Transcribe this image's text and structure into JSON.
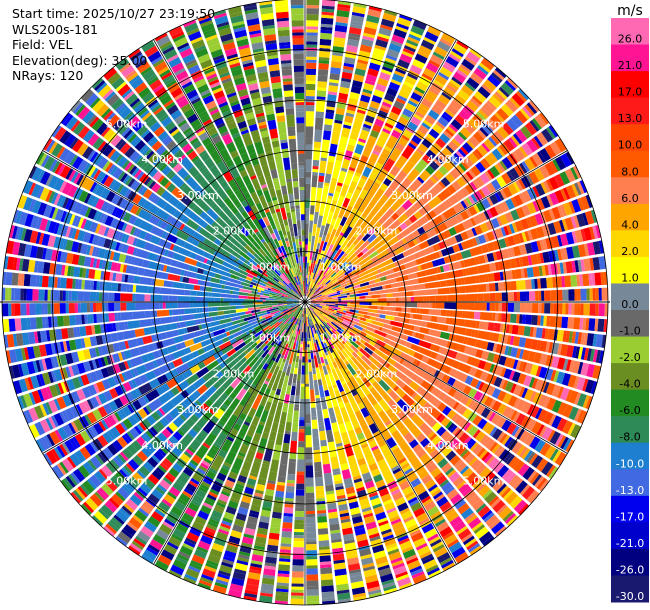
{
  "header": {
    "start_time": "Start time: 2025/10/27 23:19:50",
    "instrument": "WLS200s-181",
    "field": "Field: VEL",
    "elevation": "Elevation(deg): 35.00",
    "nrays": "NRays: 120"
  },
  "chart_data": {
    "type": "heatmap",
    "projection": "polar-ppi",
    "field": "VEL",
    "units": "m/s",
    "n_rays": 120,
    "elevation_deg": 35.0,
    "max_range_km": 6.0,
    "range_rings_km": [
      1.0,
      2.0,
      3.0,
      4.0,
      5.0
    ],
    "range_ring_labels": [
      "1.00km",
      "2.00km",
      "3.00km",
      "4.00km",
      "5.00km"
    ],
    "colorbar": {
      "label": "m/s",
      "tick_labels": [
        "26.0",
        "21.0",
        "17.0",
        "13.0",
        "10.0",
        "8.0",
        "6.0",
        "4.0",
        "2.0",
        "1.0",
        "0.0",
        "-1.0",
        "-2.0",
        "-4.0",
        "-6.0",
        "-8.0",
        "-10.0",
        "-13.0",
        "-17.0",
        "-21.0",
        "-26.0",
        "-30.0"
      ],
      "bins": [
        {
          "min": 26,
          "max": 30,
          "color": "#ff69b4"
        },
        {
          "min": 21,
          "max": 26,
          "color": "#ff1493"
        },
        {
          "min": 17,
          "max": 21,
          "color": "#ff0000"
        },
        {
          "min": 13,
          "max": 17,
          "color": "#ff1a1a"
        },
        {
          "min": 10,
          "max": 13,
          "color": "#ff4500"
        },
        {
          "min": 8,
          "max": 10,
          "color": "#ff5a00"
        },
        {
          "min": 6,
          "max": 8,
          "color": "#ff7f50"
        },
        {
          "min": 4,
          "max": 6,
          "color": "#ffa500"
        },
        {
          "min": 2,
          "max": 4,
          "color": "#ffd700"
        },
        {
          "min": 1,
          "max": 2,
          "color": "#ffff00"
        },
        {
          "min": 0,
          "max": 1,
          "color": "#778899"
        },
        {
          "min": -1,
          "max": 0,
          "color": "#696969"
        },
        {
          "min": -2,
          "max": -1,
          "color": "#9acd32"
        },
        {
          "min": -4,
          "max": -2,
          "color": "#6b8e23"
        },
        {
          "min": -6,
          "max": -4,
          "color": "#228b22"
        },
        {
          "min": -8,
          "max": -6,
          "color": "#2e8b57"
        },
        {
          "min": -10,
          "max": -8,
          "color": "#1e7fd0"
        },
        {
          "min": -13,
          "max": -10,
          "color": "#4169e1"
        },
        {
          "min": -17,
          "max": -13,
          "color": "#0000ee"
        },
        {
          "min": -21,
          "max": -17,
          "color": "#0000cd"
        },
        {
          "min": -26,
          "max": -21,
          "color": "#000080"
        },
        {
          "min": -30,
          "max": -26,
          "color": "#191970"
        }
      ]
    },
    "pattern": {
      "east_mean_ms": 9,
      "west_mean_ms": -11,
      "north_mean_ms": 0,
      "south_mean_ms": -2,
      "noise_onset_km": 3.5
    }
  }
}
